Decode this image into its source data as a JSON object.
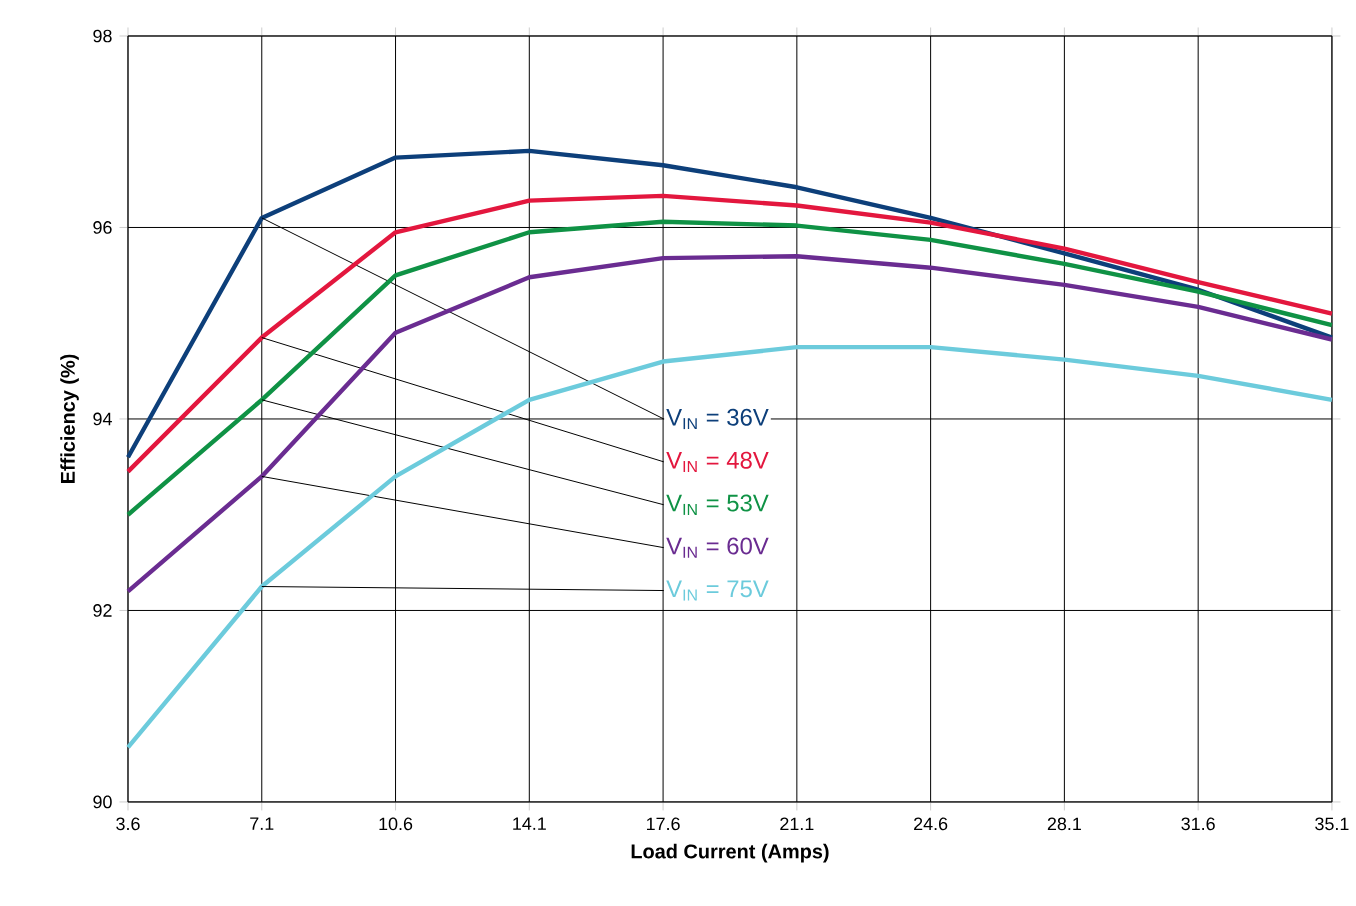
{
  "chart_data": {
    "type": "line",
    "xlabel": "Load Current (Amps)",
    "ylabel": "Efficiency (%)",
    "x": [
      3.6,
      7.1,
      10.6,
      14.1,
      17.6,
      21.1,
      24.6,
      28.1,
      31.6,
      35.1
    ],
    "xlim": [
      3.6,
      35.1
    ],
    "ylim": [
      90,
      98
    ],
    "xticks": [
      3.6,
      7.1,
      10.6,
      14.1,
      17.6,
      21.1,
      24.6,
      28.1,
      31.6,
      35.1
    ],
    "yticks": [
      90,
      92,
      94,
      96,
      98
    ],
    "grid": true,
    "legend": false,
    "marker": "none",
    "line_style": "solid",
    "series": [
      {
        "name": "V$_{IN}$ = 36V",
        "color": "#0d3f7a",
        "values": [
          93.6,
          96.1,
          96.73,
          96.8,
          96.65,
          96.42,
          96.1,
          95.73,
          95.35,
          94.85
        ]
      },
      {
        "name": "V$_{IN}$ = 48V",
        "color": "#e3173e",
        "values": [
          93.45,
          94.85,
          95.95,
          96.28,
          96.33,
          96.23,
          96.05,
          95.78,
          95.43,
          95.1
        ]
      },
      {
        "name": "V$_{IN}$ = 53V",
        "color": "#0f9245",
        "values": [
          93.0,
          94.2,
          95.5,
          95.95,
          96.06,
          96.02,
          95.87,
          95.62,
          95.33,
          94.98
        ]
      },
      {
        "name": "V$_{IN}$ = 60V",
        "color": "#6a2c91",
        "values": [
          92.2,
          93.4,
          94.9,
          95.48,
          95.68,
          95.7,
          95.58,
          95.4,
          95.17,
          94.83
        ]
      },
      {
        "name": "V$_{IN}$ = 75V",
        "color": "#6ccbdc",
        "values": [
          90.57,
          92.25,
          93.4,
          94.2,
          94.6,
          94.75,
          94.75,
          94.62,
          94.45,
          94.2
        ]
      }
    ]
  }
}
